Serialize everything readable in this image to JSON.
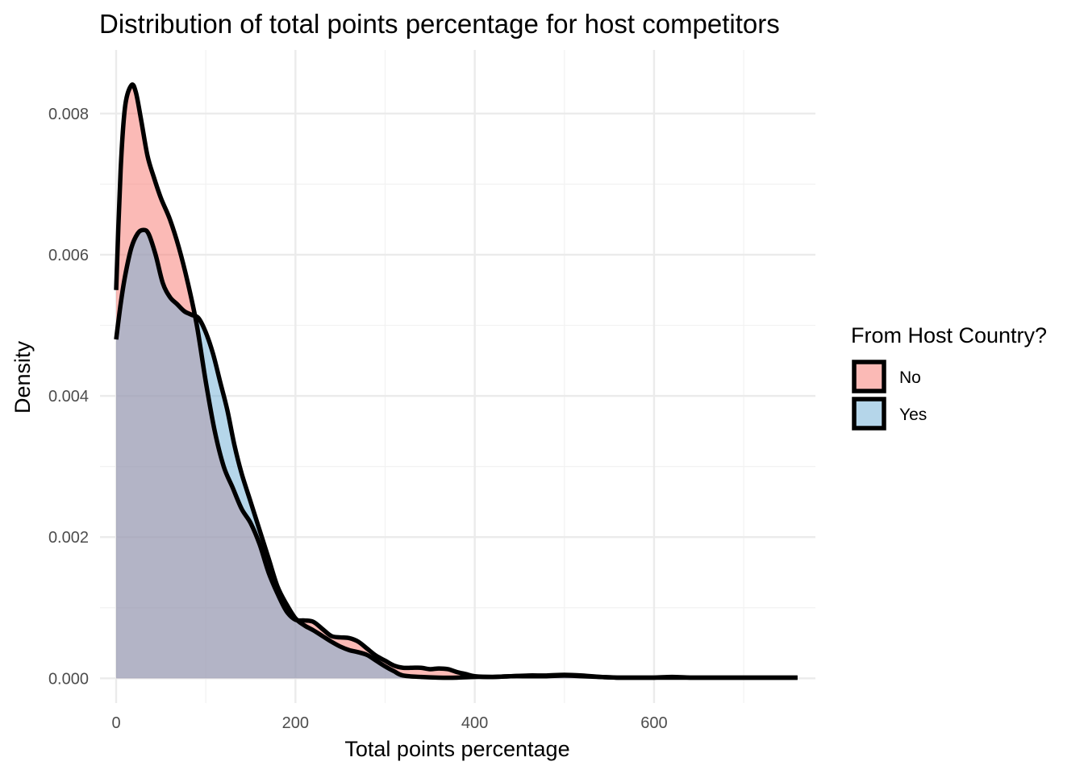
{
  "chart_data": {
    "type": "area",
    "title": "Distribution of total points percentage for host competitors",
    "xlabel": "Total points percentage",
    "ylabel": "Density",
    "xlim": [
      -18,
      780
    ],
    "ylim": [
      -0.00035,
      0.0089
    ],
    "x_ticks": [
      0,
      200,
      400,
      600
    ],
    "y_ticks": [
      0.0,
      0.002,
      0.004,
      0.006,
      0.008
    ],
    "y_tick_labels": [
      "0.000",
      "0.002",
      "0.004",
      "0.006",
      "0.008"
    ],
    "x_minor_ticks": [
      100,
      300,
      500,
      700
    ],
    "y_minor_ticks": [
      0.001,
      0.003,
      0.005,
      0.007
    ],
    "grid": true,
    "legend": {
      "title": "From Host Country?",
      "placement": "right"
    },
    "series": [
      {
        "name": "No",
        "color": "#F8766D",
        "points": [
          [
            0,
            0.0055
          ],
          [
            5,
            0.0072
          ],
          [
            10,
            0.0081
          ],
          [
            17,
            0.0084
          ],
          [
            22,
            0.0083
          ],
          [
            28,
            0.0079
          ],
          [
            35,
            0.0074
          ],
          [
            42,
            0.0071
          ],
          [
            50,
            0.0068
          ],
          [
            60,
            0.0065
          ],
          [
            70,
            0.0061
          ],
          [
            80,
            0.0056
          ],
          [
            90,
            0.005
          ],
          [
            100,
            0.0042
          ],
          [
            110,
            0.0035
          ],
          [
            120,
            0.003
          ],
          [
            130,
            0.0027
          ],
          [
            140,
            0.0024
          ],
          [
            150,
            0.0022
          ],
          [
            160,
            0.0019
          ],
          [
            170,
            0.0015
          ],
          [
            180,
            0.0012
          ],
          [
            190,
            0.00095
          ],
          [
            200,
            0.00083
          ],
          [
            210,
            0.00082
          ],
          [
            220,
            0.0008
          ],
          [
            230,
            0.0007
          ],
          [
            240,
            0.0006
          ],
          [
            250,
            0.00058
          ],
          [
            260,
            0.00057
          ],
          [
            270,
            0.00052
          ],
          [
            280,
            0.00042
          ],
          [
            290,
            0.00032
          ],
          [
            300,
            0.00025
          ],
          [
            310,
            0.00018
          ],
          [
            320,
            0.00015
          ],
          [
            330,
            0.00015
          ],
          [
            340,
            0.00015
          ],
          [
            350,
            0.00013
          ],
          [
            360,
            0.00014
          ],
          [
            370,
            0.00013
          ],
          [
            380,
            9e-05
          ],
          [
            390,
            6e-05
          ],
          [
            400,
            3e-05
          ],
          [
            420,
            2e-05
          ],
          [
            440,
            3e-05
          ],
          [
            460,
            3e-05
          ],
          [
            480,
            3e-05
          ],
          [
            500,
            4e-05
          ],
          [
            520,
            3e-05
          ],
          [
            540,
            2e-05
          ],
          [
            560,
            1e-05
          ],
          [
            580,
            1e-05
          ],
          [
            600,
            1e-05
          ],
          [
            620,
            2e-05
          ],
          [
            640,
            1e-05
          ],
          [
            660,
            1e-05
          ],
          [
            700,
            1e-05
          ],
          [
            740,
            1e-05
          ],
          [
            760,
            1e-05
          ]
        ]
      },
      {
        "name": "Yes",
        "color": "#6BAED6",
        "points": [
          [
            0,
            0.0048
          ],
          [
            5,
            0.0053
          ],
          [
            10,
            0.0057
          ],
          [
            17,
            0.0061
          ],
          [
            24,
            0.0063
          ],
          [
            30,
            0.00635
          ],
          [
            36,
            0.0063
          ],
          [
            44,
            0.006
          ],
          [
            52,
            0.0056
          ],
          [
            60,
            0.0054
          ],
          [
            68,
            0.0053
          ],
          [
            76,
            0.0052
          ],
          [
            84,
            0.00515
          ],
          [
            92,
            0.0051
          ],
          [
            100,
            0.0049
          ],
          [
            108,
            0.0046
          ],
          [
            116,
            0.0042
          ],
          [
            124,
            0.0038
          ],
          [
            132,
            0.0033
          ],
          [
            140,
            0.0029
          ],
          [
            150,
            0.0025
          ],
          [
            160,
            0.0021
          ],
          [
            170,
            0.0017
          ],
          [
            180,
            0.0013
          ],
          [
            190,
            0.00105
          ],
          [
            200,
            0.00085
          ],
          [
            210,
            0.00075
          ],
          [
            220,
            0.00068
          ],
          [
            230,
            0.0006
          ],
          [
            240,
            0.00052
          ],
          [
            250,
            0.00045
          ],
          [
            260,
            0.0004
          ],
          [
            270,
            0.00037
          ],
          [
            280,
            0.00033
          ],
          [
            290,
            0.00025
          ],
          [
            300,
            0.00017
          ],
          [
            310,
            0.0001
          ],
          [
            320,
            4e-05
          ],
          [
            340,
            2e-05
          ],
          [
            360,
            1e-05
          ],
          [
            380,
            1e-05
          ],
          [
            400,
            2e-05
          ],
          [
            420,
            2e-05
          ],
          [
            440,
            3e-05
          ],
          [
            460,
            4e-05
          ],
          [
            480,
            4e-05
          ],
          [
            500,
            5e-05
          ],
          [
            520,
            4e-05
          ],
          [
            540,
            2e-05
          ],
          [
            560,
            1e-05
          ],
          [
            580,
            1e-05
          ],
          [
            600,
            1e-05
          ],
          [
            620,
            1e-05
          ],
          [
            660,
            1e-05
          ],
          [
            700,
            1e-05
          ],
          [
            740,
            1e-05
          ],
          [
            760,
            1e-05
          ]
        ]
      }
    ]
  }
}
